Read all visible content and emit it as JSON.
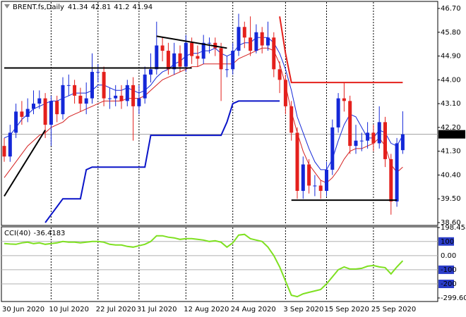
{
  "chart_data": [
    {
      "type": "candlestick",
      "title": "BRENT.fs,Daily",
      "up_color": "#1428d8",
      "down_color": "#e4201c",
      "categories": [
        "30 Jun 2020",
        null,
        null,
        null,
        null,
        null,
        null,
        null,
        "10 Jul 2020",
        null,
        null,
        null,
        null,
        null,
        null,
        null,
        "22 Jul 2020",
        null,
        null,
        null,
        null,
        null,
        null,
        "31 Jul 2020",
        null,
        null,
        null,
        null,
        null,
        null,
        null,
        "12 Aug 2020",
        null,
        null,
        null,
        null,
        null,
        null,
        null,
        "24 Aug 2020",
        null,
        null,
        null,
        null,
        null,
        null,
        null,
        null,
        "3 Sep 2020",
        null,
        null,
        null,
        null,
        null,
        null,
        "15 Sep 2020",
        null,
        null,
        null,
        null,
        null,
        null,
        null,
        "25 Sep 2020",
        null,
        null,
        null,
        null,
        null
      ],
      "open": [
        41.5,
        41.1,
        42.0,
        42.8,
        42.6,
        42.9,
        43.1,
        43.3,
        42.3,
        43.2,
        42.7,
        43.8,
        43.8,
        43.4,
        43.1,
        43.3,
        44.3,
        44.3,
        43.3,
        43.3,
        43.4,
        43.2,
        43.8,
        43.0,
        43.3,
        44.2,
        44.4,
        45.3,
        45.1,
        44.4,
        45.0,
        44.5,
        45.4,
        44.9,
        44.8,
        45.4,
        45.4,
        45.2,
        44.4,
        44.4,
        45.1,
        46.0,
        45.6,
        45.1,
        45.8,
        45.3,
        45.6,
        44.4,
        44.0,
        43.0,
        42.0,
        39.8,
        40.8,
        40.0,
        40.0,
        39.8,
        40.6,
        42.2,
        43.3,
        43.2,
        41.5,
        41.7,
        41.7,
        42.0,
        41.6,
        42.4,
        41.0,
        39.4,
        41.34
      ],
      "high": [
        41.8,
        42.3,
        43.1,
        43.2,
        43.3,
        43.6,
        43.6,
        43.5,
        43.4,
        43.4,
        44.1,
        44.2,
        44.0,
        43.7,
        43.9,
        45.0,
        44.6,
        44.5,
        43.7,
        43.8,
        43.8,
        44.0,
        44.1,
        43.8,
        44.5,
        45.0,
        46.2,
        45.6,
        45.4,
        45.4,
        45.3,
        45.7,
        45.6,
        45.3,
        45.7,
        45.6,
        45.6,
        45.4,
        44.9,
        45.4,
        46.5,
        46.2,
        46.4,
        46.1,
        46.0,
        46.2,
        45.8,
        44.7,
        44.2,
        43.2,
        42.2,
        41.1,
        41.0,
        40.4,
        40.2,
        40.9,
        42.5,
        43.5,
        43.9,
        43.4,
        42.3,
        42.0,
        42.4,
        42.3,
        43.0,
        42.6,
        41.2,
        41.8,
        42.81
      ],
      "low": [
        40.9,
        40.9,
        41.8,
        42.3,
        42.4,
        42.7,
        42.9,
        41.8,
        41.5,
        42.4,
        42.5,
        43.4,
        43.1,
        42.8,
        42.7,
        43.1,
        43.9,
        43.0,
        42.9,
        43.0,
        42.9,
        43.0,
        41.7,
        42.7,
        43.1,
        43.9,
        44.2,
        44.7,
        44.2,
        44.2,
        44.3,
        44.3,
        44.6,
        44.5,
        44.6,
        45.0,
        44.9,
        43.2,
        44.1,
        44.2,
        44.9,
        45.2,
        44.9,
        45.0,
        45.0,
        45.1,
        44.1,
        43.5,
        42.7,
        41.7,
        39.5,
        39.5,
        39.7,
        39.6,
        39.5,
        39.6,
        40.4,
        42.0,
        42.8,
        41.2,
        41.2,
        41.3,
        41.4,
        41.3,
        41.4,
        40.7,
        38.9,
        39.2,
        41.2
      ],
      "close": [
        41.1,
        42.0,
        42.8,
        42.6,
        42.9,
        43.1,
        43.3,
        42.3,
        43.2,
        42.7,
        43.8,
        43.8,
        43.4,
        43.1,
        43.3,
        44.3,
        44.3,
        43.3,
        43.3,
        43.4,
        43.2,
        43.8,
        43.0,
        43.3,
        44.2,
        44.4,
        45.3,
        45.1,
        44.4,
        45.0,
        44.5,
        45.4,
        44.9,
        44.8,
        45.4,
        45.4,
        45.2,
        44.4,
        44.4,
        45.1,
        46.0,
        45.6,
        45.1,
        45.8,
        45.3,
        45.6,
        44.4,
        44.0,
        43.0,
        42.0,
        39.8,
        40.8,
        40.0,
        40.0,
        39.8,
        40.6,
        42.2,
        43.3,
        43.2,
        41.5,
        41.7,
        41.7,
        42.0,
        41.6,
        42.4,
        41.0,
        39.4,
        41.6,
        41.94
      ],
      "lines": [
        {
          "color": "#1428d8",
          "width": 1,
          "values": [
            41.8,
            41.9,
            42.2,
            42.5,
            42.7,
            42.9,
            43.0,
            43.1,
            43.2,
            43.2,
            43.3,
            43.4,
            43.5,
            43.5,
            43.5,
            43.6,
            43.8,
            43.8,
            43.7,
            43.6,
            43.6,
            43.7,
            43.6,
            43.5,
            43.6,
            43.8,
            44.1,
            44.3,
            44.4,
            44.6,
            44.7,
            44.9,
            45.0,
            45.0,
            45.1,
            45.1,
            45.2,
            45.0,
            44.9,
            45.0,
            45.3,
            45.4,
            45.4,
            45.6,
            45.6,
            45.6,
            45.4,
            45.0,
            44.4,
            43.6,
            42.6,
            42.0,
            41.4,
            40.9,
            40.6,
            40.6,
            41.0,
            41.7,
            42.3,
            42.7,
            42.6,
            42.2,
            41.8,
            41.8,
            42.1,
            42.0,
            41.6,
            41.5,
            41.9
          ]
        },
        {
          "color": "#d42020",
          "width": 1,
          "values": [
            40.3,
            40.6,
            40.9,
            41.2,
            41.5,
            41.7,
            41.9,
            42.0,
            42.2,
            42.3,
            42.4,
            42.6,
            42.7,
            42.8,
            42.9,
            43.0,
            43.1,
            43.2,
            43.2,
            43.2,
            43.2,
            43.3,
            43.3,
            43.3,
            43.4,
            43.6,
            43.8,
            44.0,
            44.1,
            44.2,
            44.3,
            44.4,
            44.5,
            44.5,
            44.6,
            44.6,
            44.6,
            44.6,
            44.6,
            44.6,
            44.8,
            44.9,
            45.0,
            45.1,
            45.2,
            45.2,
            45.1,
            44.6,
            43.8,
            42.8,
            42.0,
            41.3,
            40.8,
            40.5,
            40.2,
            40.1,
            40.3,
            40.6,
            41.0,
            41.3,
            41.4,
            41.4,
            41.5,
            41.6,
            41.8,
            41.5,
            40.8,
            40.5,
            40.7
          ]
        },
        {
          "color": "#0a14c8",
          "width": 2,
          "values": [
            null,
            null,
            null,
            null,
            null,
            null,
            null,
            38.6,
            38.9,
            39.2,
            39.5,
            39.5,
            39.5,
            39.5,
            40.6,
            40.7,
            40.7,
            40.7,
            40.7,
            40.7,
            40.7,
            40.7,
            40.7,
            40.7,
            40.7,
            41.9,
            41.9,
            41.9,
            41.9,
            41.9,
            41.9,
            41.9,
            41.9,
            41.9,
            41.9,
            41.9,
            41.9,
            41.9,
            42.4,
            43.1,
            43.2,
            43.2,
            43.2,
            43.2,
            43.2,
            43.2,
            43.2,
            43.2,
            null,
            null,
            null,
            null,
            null,
            null,
            null,
            null,
            null,
            null,
            null,
            null,
            null,
            null,
            null,
            null,
            null,
            null,
            null,
            null,
            null
          ]
        },
        {
          "color": "#e4201c",
          "width": 2,
          "values": [
            null,
            null,
            null,
            null,
            null,
            null,
            null,
            null,
            null,
            null,
            null,
            null,
            null,
            null,
            null,
            null,
            null,
            null,
            null,
            null,
            null,
            null,
            null,
            null,
            null,
            null,
            null,
            null,
            null,
            null,
            null,
            null,
            null,
            null,
            null,
            null,
            null,
            null,
            null,
            null,
            null,
            null,
            null,
            null,
            null,
            null,
            null,
            46.4,
            45.0,
            43.9,
            43.9,
            43.9,
            43.9,
            43.9,
            43.9,
            43.9,
            43.9,
            43.9,
            43.9,
            43.9,
            43.9,
            43.9,
            43.9,
            43.9,
            43.9,
            43.9,
            43.9,
            43.9,
            43.9
          ]
        }
      ],
      "trendlines": [
        {
          "color": "#000000",
          "from": [
            0,
            44.45
          ],
          "to": [
            32,
            44.45
          ]
        },
        {
          "color": "#000000",
          "from": [
            0,
            39.6
          ],
          "to": [
            7,
            42.1
          ]
        },
        {
          "color": "#000000",
          "from": [
            26,
            45.65
          ],
          "to": [
            38,
            45.2
          ]
        },
        {
          "color": "#000000",
          "from": [
            49,
            39.45
          ],
          "to": [
            67,
            39.45
          ]
        }
      ],
      "ylim": [
        38.52,
        46.94
      ],
      "yticks": [
        {
          "value": 46.7,
          "label": "46.70"
        },
        {
          "value": 45.8,
          "label": "45.80"
        },
        {
          "value": 44.9,
          "label": "44.90"
        },
        {
          "value": 44.0,
          "label": "44.00"
        },
        {
          "value": 43.1,
          "label": "43.10"
        },
        {
          "value": 42.2,
          "label": "42.20"
        },
        {
          "value": 41.3,
          "label": "41.30"
        },
        {
          "value": 40.4,
          "label": "40.40"
        },
        {
          "value": 39.5,
          "label": "39.50"
        },
        {
          "value": 38.6,
          "label": "38.60"
        }
      ]
    },
    {
      "type": "line",
      "title": "CCI(40)",
      "color": "#7ee020",
      "values": [
        85,
        82,
        80,
        90,
        95,
        85,
        90,
        80,
        85,
        90,
        100,
        95,
        95,
        90,
        95,
        100,
        100,
        95,
        80,
        75,
        75,
        65,
        60,
        70,
        80,
        100,
        140,
        140,
        130,
        125,
        115,
        120,
        120,
        115,
        110,
        100,
        105,
        95,
        60,
        90,
        145,
        150,
        120,
        110,
        100,
        60,
        0,
        -80,
        -180,
        -280,
        -290,
        -270,
        -260,
        -250,
        -240,
        -200,
        -150,
        -100,
        -80,
        -95,
        -95,
        -90,
        -75,
        -70,
        -80,
        -85,
        -130,
        -80,
        -36.4183
      ],
      "ylim": [
        -299.603,
        198.4581
      ],
      "yticks": [
        198.4581,
        100,
        {
          "value": 0,
          "label": "0.00"
        },
        -100,
        -200,
        -299.603
      ]
    }
  ]
}
